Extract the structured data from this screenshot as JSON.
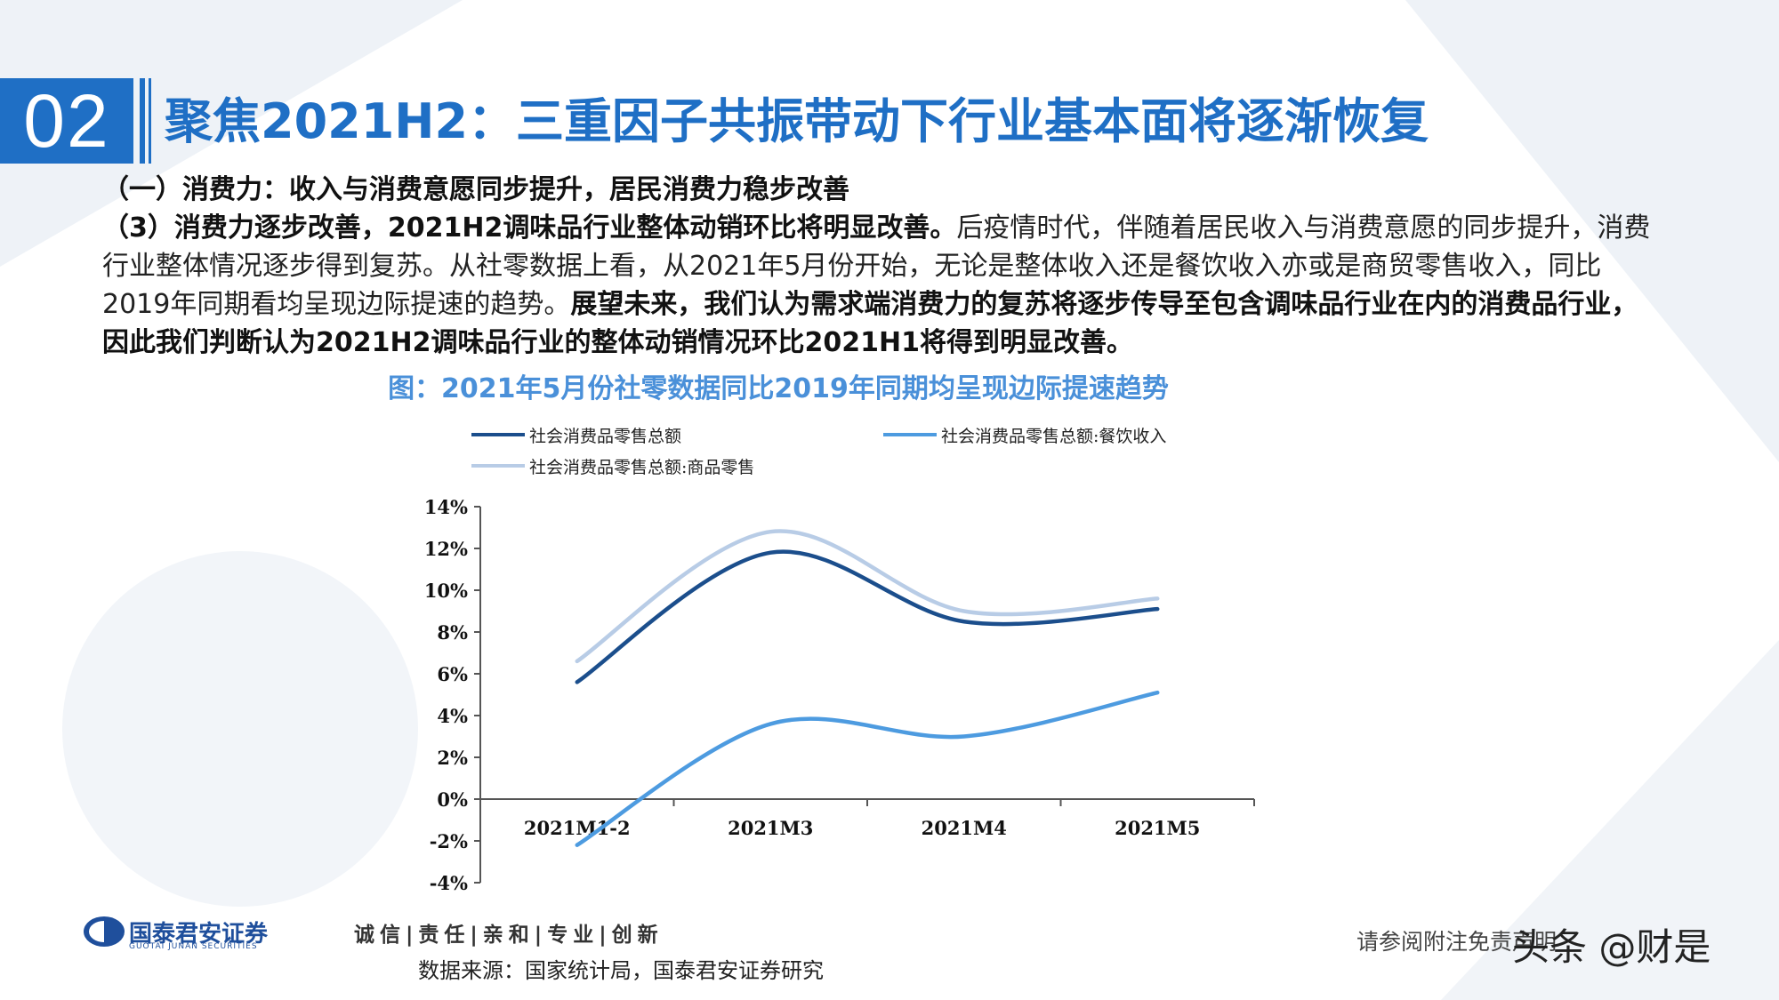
{
  "header": {
    "section_number": "02",
    "title": "聚焦2021H2：三重因子共振带动下行业基本面将逐渐恢复"
  },
  "body": {
    "subheading": "（一）消费力：收入与消费意愿同步提升，居民消费力稳步改善",
    "para_bold1": "（3）消费力逐步改善，2021H2调味品行业整体动销环比将明显改善。",
    "para_text1": "后疫情时代，伴随着居民收入与消费意愿的同步提升，消费",
    "para_text2": "行业整体情况逐步得到复苏。从社零数据上看，从2021年5月份开始，无论是整体收入还是餐饮收入亦或是商贸零售收入，同比",
    "para_text3": "2019年同期看均呈现边际提速的趋势。",
    "para_bold2": "展望未来，我们认为需求端消费力的复苏将逐步传导至包含调味品行业在内的消费品行业，",
    "para_bold3": "因此我们判断认为2021H2调味品行业的整体动销情况环比2021H1将得到明显改善。"
  },
  "figure": {
    "caption": "图：2021年5月份社零数据同比2019年同期均呈现边际提速趋势"
  },
  "chart_data": {
    "type": "line",
    "categories": [
      "2021M1-2",
      "2021M3",
      "2021M4",
      "2021M5"
    ],
    "series": [
      {
        "name": "社会消费品零售总额",
        "values": [
          5.6,
          11.8,
          8.5,
          9.1
        ],
        "color": "#1b4e8c"
      },
      {
        "name": "社会消费品零售总额:餐饮收入",
        "values": [
          -2.2,
          3.6,
          3.0,
          5.1
        ],
        "color": "#4d9be0"
      },
      {
        "name": "社会消费品零售总额:商品零售",
        "values": [
          6.6,
          12.8,
          9.0,
          9.6
        ],
        "color": "#b8cce6"
      }
    ],
    "yticks": [
      "14%",
      "12%",
      "10%",
      "8%",
      "6%",
      "4%",
      "2%",
      "0%",
      "-2%",
      "-4%"
    ],
    "ylim": [
      -4,
      14
    ],
    "legend_position": "top"
  },
  "footer": {
    "company": "国泰君安证券",
    "company_en": "GUOTAI JUNAN SECURITIES",
    "slogan": "诚信|责任|亲和|专业|创新",
    "source": "数据来源：国家统计局，国泰君安证券研究",
    "disclaimer": "请参阅附注免责声明",
    "handle": "头条 @财是"
  },
  "colors": {
    "brand": "#1f6fc5",
    "caption": "#4a90d9"
  }
}
